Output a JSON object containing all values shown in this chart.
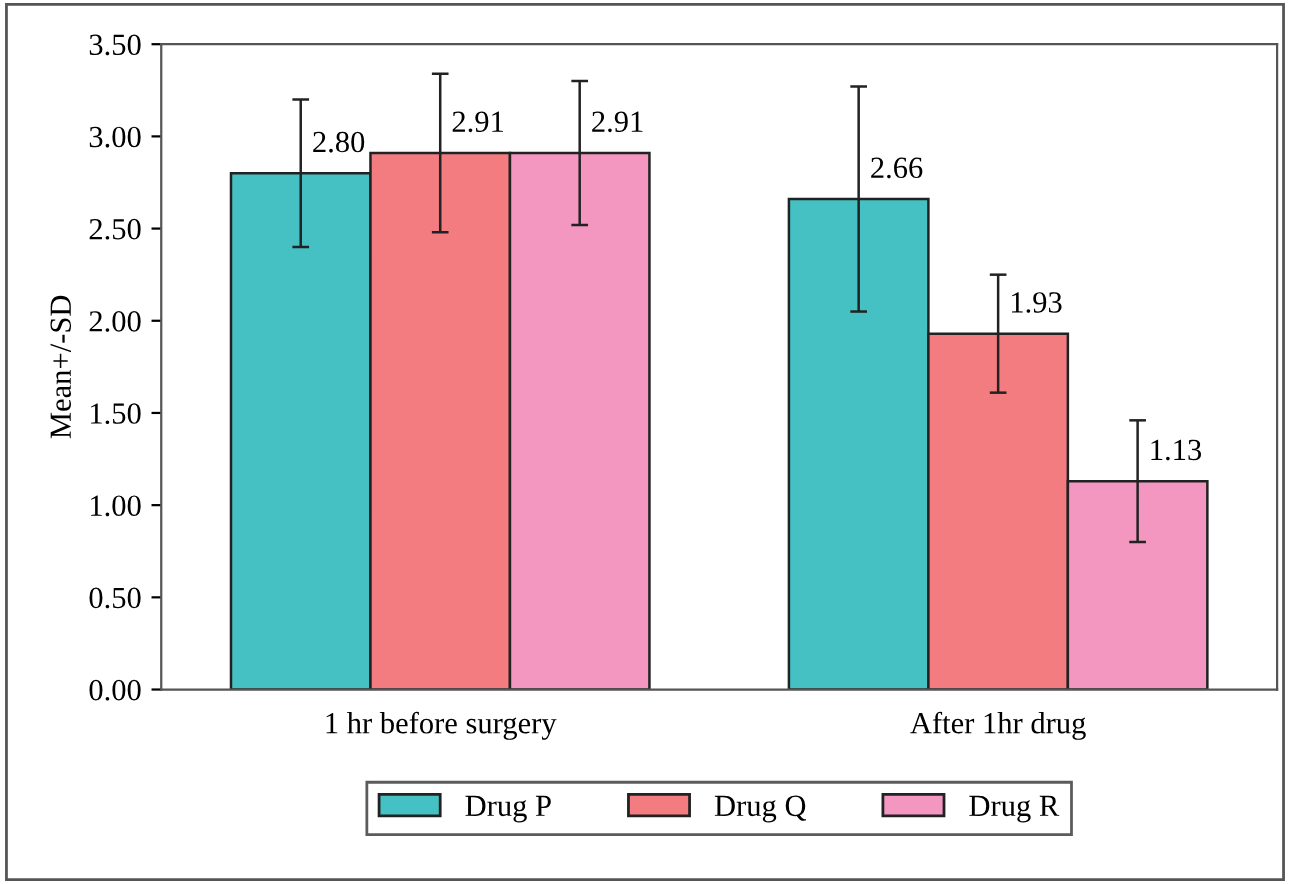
{
  "chart_data": {
    "type": "bar",
    "ylabel": "Mean+/-SD",
    "categories": [
      "1 hr before surgery",
      "After 1hr drug"
    ],
    "series": [
      {
        "name": "Drug P",
        "color": "#45c1c4",
        "values": [
          2.8,
          2.66
        ],
        "errors": [
          0.4,
          0.61
        ],
        "value_labels": [
          "2.80",
          "2.66"
        ]
      },
      {
        "name": "Drug Q",
        "color": "#f27c80",
        "values": [
          2.91,
          1.93
        ],
        "errors": [
          0.43,
          0.32
        ],
        "value_labels": [
          "2.91",
          "1.93"
        ]
      },
      {
        "name": "Drug R",
        "color": "#f396c0",
        "values": [
          2.91,
          1.13
        ],
        "errors": [
          0.39,
          0.33
        ],
        "value_labels": [
          "2.91",
          "1.13"
        ]
      }
    ],
    "ylim": [
      0,
      3.5
    ],
    "yticks": [
      {
        "value": 0,
        "label": "0.00"
      },
      {
        "value": 0.5,
        "label": "0.50"
      },
      {
        "value": 1,
        "label": "1.00"
      },
      {
        "value": 1.5,
        "label": "1.50"
      },
      {
        "value": 2,
        "label": "2.00"
      },
      {
        "value": 2.5,
        "label": "2.50"
      },
      {
        "value": 3,
        "label": "3.00"
      },
      {
        "value": 3.5,
        "label": "3.50"
      }
    ],
    "legend": "bottom",
    "grid": false
  }
}
